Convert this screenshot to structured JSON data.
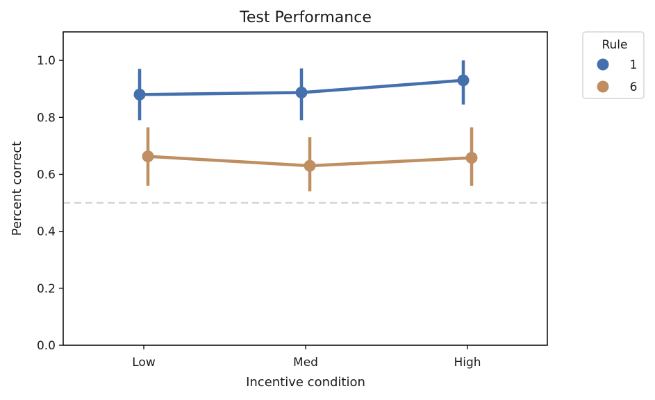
{
  "chart_data": {
    "type": "line",
    "title": "Test Performance",
    "xlabel": "Incentive condition",
    "ylabel": "Percent correct",
    "categories": [
      "Low",
      "Med",
      "High"
    ],
    "ylim": [
      0,
      1.1
    ],
    "yticks": [
      0.0,
      0.2,
      0.4,
      0.6,
      0.8,
      1.0
    ],
    "ytick_labels": [
      "0.0",
      "0.2",
      "0.4",
      "0.6",
      "0.8",
      "1.0"
    ],
    "grid": false,
    "reference_line": {
      "y": 0.5,
      "style": "dashed",
      "color": "#d3d3d3"
    },
    "legend": {
      "title": "Rule",
      "placement": "outside-top-right"
    },
    "series": [
      {
        "name": "1",
        "color": "#4470ad",
        "values": [
          0.88,
          0.887,
          0.93
        ],
        "ci_low": [
          0.79,
          0.79,
          0.845
        ],
        "ci_high": [
          0.97,
          0.972,
          1.0
        ]
      },
      {
        "name": "6",
        "color": "#c08f61",
        "values": [
          0.663,
          0.63,
          0.658
        ],
        "ci_low": [
          0.56,
          0.54,
          0.56
        ],
        "ci_high": [
          0.765,
          0.73,
          0.765
        ]
      }
    ]
  }
}
